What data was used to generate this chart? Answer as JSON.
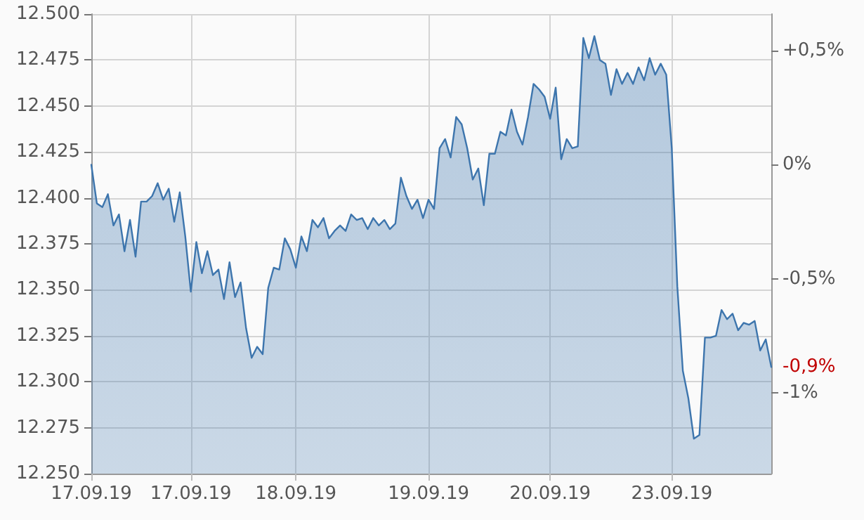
{
  "chart_data": {
    "type": "area",
    "grid": true,
    "marker": "none",
    "line_style": "solid",
    "categories": [
      "17.09.19",
      null,
      null,
      null,
      null,
      null,
      null,
      null,
      null,
      null,
      null,
      null,
      null,
      null,
      null,
      null,
      null,
      null,
      "17.09.19",
      null,
      null,
      null,
      null,
      null,
      null,
      null,
      null,
      null,
      null,
      null,
      null,
      null,
      null,
      null,
      null,
      null,
      null,
      "18.09.19",
      null,
      null,
      null,
      null,
      null,
      null,
      null,
      null,
      null,
      null,
      null,
      null,
      null,
      null,
      null,
      null,
      null,
      null,
      null,
      null,
      null,
      null,
      null,
      "19.09.19",
      null,
      null,
      null,
      null,
      null,
      null,
      null,
      null,
      null,
      null,
      null,
      null,
      null,
      null,
      null,
      null,
      null,
      null,
      null,
      null,
      null,
      "20.09.19",
      null,
      null,
      null,
      null,
      null,
      null,
      null,
      null,
      null,
      null,
      null,
      null,
      null,
      null,
      null,
      null,
      null,
      null,
      null,
      null,
      null,
      "23.09.19",
      null,
      null,
      null,
      null,
      null,
      null,
      null,
      null,
      null,
      null,
      null,
      null,
      null,
      null,
      null,
      null,
      null,
      null
    ],
    "ylim": [
      12250,
      12500
    ],
    "yticks": [
      {
        "value": 12250,
        "label": "12.250"
      },
      {
        "value": 12275,
        "label": "12.275"
      },
      {
        "value": 12300,
        "label": "12.300"
      },
      {
        "value": 12325,
        "label": "12.325"
      },
      {
        "value": 12350,
        "label": "12.350"
      },
      {
        "value": 12375,
        "label": "12.375"
      },
      {
        "value": 12400,
        "label": "12.400"
      },
      {
        "value": 12425,
        "label": "12.425"
      },
      {
        "value": 12450,
        "label": "12.450"
      },
      {
        "value": 12475,
        "label": "12.475"
      },
      {
        "value": 12500,
        "label": "12.500"
      }
    ],
    "y2lim": [
      -1.353,
      0.66
    ],
    "y2ticks": [
      {
        "value": 0.5,
        "label": "+0,5%"
      },
      {
        "value": 0,
        "label": "0%"
      },
      {
        "value": -0.5,
        "label": "-0,5%"
      },
      {
        "value": -1,
        "label": "-1%"
      }
    ],
    "annotations": [
      "-0,9%"
    ],
    "series": [
      {
        "color": "#3d75ad",
        "values": [
          12418,
          12397,
          12395,
          12402,
          12385,
          12391,
          12371,
          12388,
          12368,
          12398,
          12398,
          12401,
          12408,
          12399,
          12405,
          12387,
          12403,
          12379,
          12349,
          12376,
          12359,
          12371,
          12358,
          12361,
          12345,
          12365,
          12346,
          12354,
          12329,
          12313,
          12319,
          12315,
          12351,
          12362,
          12361,
          12378,
          12372,
          12362,
          12379,
          12371,
          12388,
          12384,
          12389,
          12378,
          12382,
          12385,
          12382,
          12391,
          12388,
          12389,
          12383,
          12389,
          12385,
          12388,
          12383,
          12386,
          12411,
          12401,
          12394,
          12399,
          12389,
          12399,
          12394,
          12427,
          12432,
          12422,
          12444,
          12440,
          12427,
          12410,
          12416,
          12396,
          12424,
          12424,
          12436,
          12434,
          12448,
          12436,
          12429,
          12444,
          12462,
          12459,
          12455,
          12443,
          12460,
          12421,
          12432,
          12427,
          12428,
          12487,
          12476,
          12488,
          12475,
          12473,
          12456,
          12470,
          12462,
          12468,
          12462,
          12471,
          12464,
          12476,
          12467,
          12473,
          12467,
          12427,
          12352,
          12306,
          12291,
          12269,
          12271,
          12324,
          12324,
          12325,
          12339,
          12334,
          12337,
          12328,
          12332,
          12331,
          12333,
          12317,
          12323,
          12308
        ]
      }
    ]
  }
}
